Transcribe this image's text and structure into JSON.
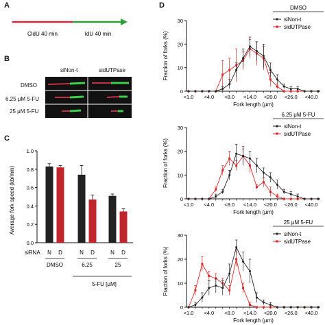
{
  "panel_a": {
    "label": "A",
    "segment_1_label": "CldU 40 min",
    "segment_2_label": "IdU 40 min",
    "color_1": "#d7263d",
    "color_2": "#2e9e3e"
  },
  "panel_b": {
    "label": "B",
    "col_headers": [
      "siNon-t",
      "sidUTPase"
    ],
    "row_labels": [
      "DMSO",
      "6.25 μM 5-FU",
      "25 μM 5-FU"
    ]
  },
  "panel_c": {
    "label": "C",
    "ylabel": "Average fork speed (kb/min)",
    "yticks": [
      "0.0",
      "0.2",
      "0.4",
      "0.6",
      "0.8",
      "1.0"
    ],
    "sirna_label": "siRNA",
    "n_label": "N",
    "d_label": "D",
    "group_labels": [
      "DMSO",
      "6.25",
      "25"
    ],
    "fu_label": "5-FU [μM]",
    "colors": {
      "N": "#222222",
      "D": "#c0272d"
    }
  },
  "panel_d": {
    "label": "D",
    "ylabel": "Fraction of forks (%)",
    "xlabel": "Fork length (μm)",
    "xticks": [
      "<1.0",
      "<4.0",
      "<8.0",
      "<14.0",
      "<20.0",
      "<26.0",
      "<40.0"
    ],
    "yticks": [
      "0",
      "10",
      "20",
      "30"
    ],
    "legend": [
      "siNon-t",
      "sidUTPase"
    ],
    "titles": [
      "DMSO",
      "6.25 μM 5-FU",
      "25 μM 5-FU"
    ],
    "colors": {
      "siNon-t": "#222222",
      "sidUTPase": "#d62728"
    }
  },
  "chart_data": [
    {
      "type": "bar",
      "ylabel": "Average fork speed (kb/min)",
      "ylim": [
        0,
        1.0
      ],
      "categories": [
        "DMSO",
        "6.25",
        "25"
      ],
      "series": [
        {
          "name": "N",
          "values": [
            0.83,
            0.74,
            0.51
          ],
          "errors": [
            0.03,
            0.1,
            0.02
          ]
        },
        {
          "name": "D",
          "values": [
            0.82,
            0.47,
            0.34
          ],
          "errors": [
            0.02,
            0.05,
            0.03
          ]
        }
      ]
    },
    {
      "type": "line",
      "title": "DMSO",
      "xlabel": "Fork length (μm)",
      "ylabel": "Fraction of forks (%)",
      "ylim": [
        0,
        30
      ],
      "x": [
        1,
        2,
        3,
        4,
        5,
        6,
        7,
        8,
        9,
        10,
        11,
        12,
        13,
        14,
        15,
        16,
        17,
        18,
        19,
        20
      ],
      "series": [
        {
          "name": "siNon-t",
          "values": [
            0,
            0,
            0,
            0,
            0,
            1,
            3,
            9,
            14,
            19,
            17,
            15,
            9,
            5,
            2,
            1,
            1,
            0,
            0,
            0
          ],
          "errors": [
            0,
            0,
            0,
            0,
            0,
            1,
            2,
            3,
            4,
            4,
            4,
            5,
            3,
            2,
            1,
            1,
            1,
            0,
            0,
            0
          ]
        },
        {
          "name": "sidUTPase",
          "values": [
            0,
            0,
            0,
            0,
            0,
            7,
            9,
            11,
            13,
            18,
            16,
            14,
            5,
            2,
            0,
            0,
            0,
            0,
            0,
            0
          ],
          "errors": [
            0,
            0,
            0,
            0,
            0,
            6,
            5,
            7,
            4,
            4,
            5,
            5,
            3,
            1,
            0,
            0,
            0,
            0,
            0,
            0
          ]
        }
      ]
    },
    {
      "type": "line",
      "title": "6.25 μM 5-FU",
      "xlabel": "Fork length (μm)",
      "ylabel": "Fraction of forks (%)",
      "ylim": [
        0,
        30
      ],
      "x": [
        1,
        2,
        3,
        4,
        5,
        6,
        7,
        8,
        9,
        10,
        11,
        12,
        13,
        14,
        15,
        16,
        17,
        18,
        19,
        20
      ],
      "series": [
        {
          "name": "siNon-t",
          "values": [
            0,
            0,
            0,
            0,
            1,
            3,
            10,
            19,
            18,
            17,
            14,
            11,
            9,
            6,
            3,
            2,
            1,
            0,
            0,
            0
          ],
          "errors": [
            0,
            0,
            0,
            0,
            1,
            1,
            2,
            4,
            4,
            3,
            3,
            2,
            2,
            2,
            1,
            1,
            1,
            0,
            0,
            0
          ]
        },
        {
          "name": "sidUTPase",
          "values": [
            0,
            0,
            0,
            0,
            4,
            12,
            17,
            14,
            18,
            14,
            5,
            7,
            3,
            1,
            0,
            0,
            0,
            0,
            0,
            0
          ],
          "errors": [
            0,
            0,
            0,
            0,
            1,
            2,
            3,
            2,
            3,
            3,
            1,
            2,
            2,
            1,
            0,
            0,
            0,
            0,
            0,
            0
          ]
        }
      ]
    },
    {
      "type": "line",
      "title": "25 μM 5-FU",
      "xlabel": "Fork length (μm)",
      "ylabel": "Fraction of forks (%)",
      "ylim": [
        0,
        30
      ],
      "x": [
        1,
        2,
        3,
        4,
        5,
        6,
        7,
        8,
        9,
        10,
        11,
        12,
        13,
        14,
        15,
        16,
        17,
        18,
        19,
        20
      ],
      "series": [
        {
          "name": "siNon-t",
          "values": [
            0,
            1,
            4,
            8,
            9,
            8,
            14,
            25,
            19,
            15,
            4,
            2,
            1,
            0,
            0,
            0,
            0,
            0,
            0,
            0
          ],
          "errors": [
            0,
            1,
            2,
            3,
            3,
            3,
            4,
            3,
            4,
            5,
            2,
            1,
            1,
            0,
            0,
            0,
            0,
            0,
            0,
            0
          ]
        },
        {
          "name": "sidUTPase",
          "values": [
            0,
            7,
            18,
            13,
            12,
            10,
            7,
            20,
            8,
            1,
            0,
            0,
            0,
            0,
            0,
            0,
            0,
            0,
            0,
            0
          ],
          "errors": [
            0,
            2,
            3,
            2,
            2,
            2,
            2,
            3,
            2,
            1,
            0,
            0,
            0,
            0,
            0,
            0,
            0,
            0,
            0,
            0
          ]
        }
      ]
    }
  ]
}
